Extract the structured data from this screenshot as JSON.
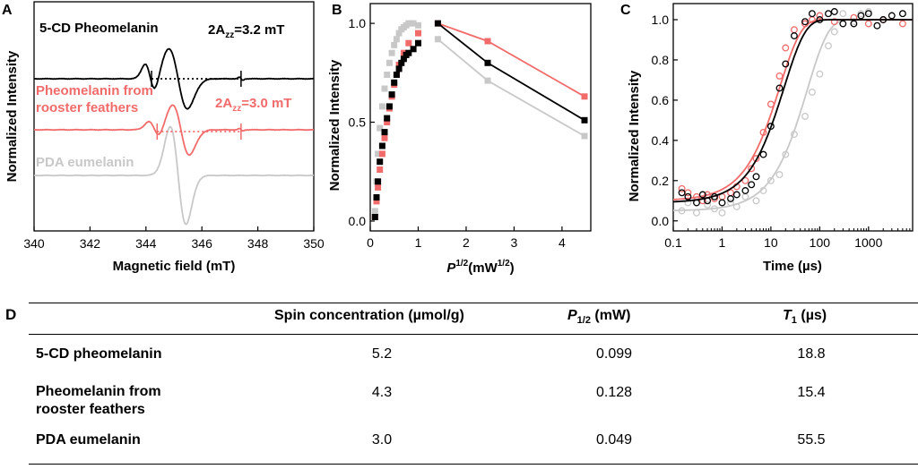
{
  "panel_letters": {
    "a": "A",
    "b": "B",
    "c": "C",
    "d": "D"
  },
  "chart_data": [
    {
      "panel": "A",
      "type": "line",
      "xlabel": "Magnetic field (mT)",
      "ylabel": "Normalized Intensity",
      "xlim": [
        340,
        350
      ],
      "xticks": [
        "340",
        "342",
        "344",
        "346",
        "348",
        "350"
      ],
      "series": [
        {
          "name": "5-CD Pheomelanin",
          "color": "#000000",
          "label_color": "#000000",
          "annotation": "2A",
          "annotation_sub": "zz",
          "annotation_rest": "=3.2 mT",
          "span_mT": [
            344.2,
            347.4
          ]
        },
        {
          "name": "Pheomelanin from rooster feathers",
          "label_line1": "Pheomelanin from",
          "label_line2": "rooster feathers",
          "color": "#f26b6b",
          "label_color": "#f26b6b",
          "annotation": "2A",
          "annotation_sub": "zz",
          "annotation_rest": "=3.0 mT",
          "span_mT": [
            344.4,
            347.4
          ]
        },
        {
          "name": "PDA eumelanin",
          "color": "#c8c8c8",
          "label_color": "#c8c8c8"
        }
      ]
    },
    {
      "panel": "B",
      "type": "scatter",
      "xlabel_main": "P",
      "xlabel_sup": "1/2",
      "xlabel_rest": "(mW",
      "xlabel_sup2": "1/2",
      "xlabel_end": ")",
      "ylabel": "Normalized Intensity",
      "xlim": [
        0,
        4.6
      ],
      "ylim": [
        -0.05,
        1.1
      ],
      "xticks": [
        "0",
        "1",
        "2",
        "3",
        "4"
      ],
      "yticks": [
        "0.0",
        "0.5",
        "1.0"
      ],
      "series": [
        {
          "name": "5-CD pheomelanin",
          "color": "#000000",
          "x": [
            0.1,
            0.13,
            0.16,
            0.2,
            0.25,
            0.3,
            0.35,
            0.4,
            0.45,
            0.5,
            0.55,
            0.6,
            0.65,
            0.7,
            0.75,
            0.8,
            0.9,
            1.0,
            1.41,
            2.45,
            4.47
          ],
          "y": [
            0.02,
            0.12,
            0.2,
            0.3,
            0.38,
            0.45,
            0.52,
            0.58,
            0.64,
            0.7,
            0.74,
            0.77,
            0.8,
            0.82,
            0.84,
            0.85,
            0.87,
            0.9,
            1.0,
            0.8,
            0.51
          ]
        },
        {
          "name": "Pheomelanin from rooster feathers",
          "color": "#f26b6b",
          "x": [
            0.1,
            0.13,
            0.16,
            0.2,
            0.25,
            0.3,
            0.35,
            0.4,
            0.45,
            0.5,
            0.55,
            0.6,
            0.7,
            0.8,
            1.0,
            1.41,
            2.45,
            4.47
          ],
          "y": [
            0.02,
            0.1,
            0.17,
            0.26,
            0.34,
            0.42,
            0.5,
            0.57,
            0.63,
            0.69,
            0.74,
            0.79,
            0.85,
            0.9,
            0.95,
            1.0,
            0.91,
            0.63
          ]
        },
        {
          "name": "PDA eumelanin",
          "color": "#c8c8c8",
          "x": [
            0.1,
            0.13,
            0.16,
            0.2,
            0.25,
            0.3,
            0.35,
            0.4,
            0.45,
            0.5,
            0.55,
            0.6,
            0.65,
            0.7,
            0.75,
            0.8,
            0.85,
            0.9,
            1.0,
            1.41,
            2.45,
            4.47
          ],
          "y": [
            0.05,
            0.2,
            0.34,
            0.47,
            0.58,
            0.67,
            0.74,
            0.8,
            0.85,
            0.89,
            0.92,
            0.95,
            0.97,
            0.98,
            0.99,
            1.0,
            1.0,
            1.0,
            0.99,
            0.92,
            0.71,
            0.43
          ]
        }
      ]
    },
    {
      "panel": "C",
      "type": "scatter",
      "xlabel": "Time (µs)",
      "ylabel": "Normalized Intensity",
      "xscale": "log",
      "xlim": [
        0.1,
        8000
      ],
      "ylim": [
        -0.05,
        1.08
      ],
      "xticks": [
        "0.1",
        "1",
        "10",
        "100",
        "1000"
      ],
      "yticks": [
        "0.0",
        "0.2",
        "0.4",
        "0.6",
        "0.8",
        "1.0"
      ],
      "series": [
        {
          "name": "5-CD pheomelanin",
          "color": "#000000",
          "T1": 18.8,
          "y0": 0.09,
          "x": [
            0.15,
            0.2,
            0.3,
            0.4,
            0.5,
            0.7,
            1,
            1.5,
            2,
            3,
            4,
            5,
            7,
            10,
            15,
            20,
            30,
            50,
            70,
            100,
            150,
            200,
            300,
            500,
            700,
            1000,
            1500,
            2000,
            3000,
            5000
          ],
          "y": [
            0.14,
            0.12,
            0.09,
            0.13,
            0.1,
            0.12,
            0.09,
            0.11,
            0.13,
            0.15,
            0.18,
            0.22,
            0.33,
            0.47,
            0.66,
            0.78,
            0.92,
            0.99,
            1.03,
            1.0,
            1.03,
            1.04,
            0.98,
            0.98,
            1.02,
            1.03,
            0.97,
            1.0,
            1.02,
            1.03
          ]
        },
        {
          "name": "Pheomelanin from rooster feathers",
          "color": "#f26b6b",
          "T1": 15.4,
          "y0": 0.1,
          "x": [
            0.15,
            0.2,
            0.3,
            0.4,
            0.5,
            0.7,
            1,
            1.5,
            2,
            3,
            4,
            5,
            7,
            10,
            15,
            20,
            30,
            50,
            70,
            100,
            200,
            500,
            1000,
            2000,
            5000
          ],
          "y": [
            0.16,
            0.14,
            0.12,
            0.1,
            0.13,
            0.11,
            0.12,
            0.14,
            0.17,
            0.2,
            0.26,
            0.31,
            0.44,
            0.58,
            0.72,
            0.86,
            0.95,
            0.98,
            1.0,
            1.02,
            0.99,
            1.01,
            0.98,
            1.0,
            0.98
          ]
        },
        {
          "name": "PDA eumelanin",
          "color": "#c8c8c8",
          "T1": 55.5,
          "y0": 0.05,
          "x": [
            0.15,
            0.2,
            0.3,
            0.5,
            0.7,
            1,
            1.5,
            2,
            3,
            5,
            7,
            10,
            15,
            20,
            30,
            50,
            70,
            100,
            150,
            200,
            300,
            500,
            700,
            1000,
            2000,
            5000
          ],
          "y": [
            0.05,
            0.09,
            0.04,
            0.08,
            0.06,
            0.04,
            0.09,
            0.07,
            0.12,
            0.1,
            0.15,
            0.2,
            0.23,
            0.33,
            0.43,
            0.52,
            0.64,
            0.73,
            0.87,
            0.94,
            1.03,
            0.99,
            1.03,
            1.04,
            1.0,
            1.03
          ]
        }
      ]
    },
    {
      "panel": "D",
      "type": "table",
      "columns": [
        "Spin concentration (µmol/g)",
        "P",
        "1/2",
        "(mW)",
        "T",
        "1",
        "(µs)"
      ],
      "rows": [
        {
          "label": "5-CD pheomelanin",
          "spin": "5.2",
          "p": "0.099",
          "t1": "18.8"
        },
        {
          "label": "Pheomelanin from rooster  feathers",
          "label_line1": "Pheomelanin from",
          "label_line2": "rooster  feathers",
          "spin": "4.3",
          "p": "0.128",
          "t1": "15.4"
        },
        {
          "label": "PDA eumelanin",
          "spin": "3.0",
          "p": "0.049",
          "t1": "55.5"
        }
      ]
    }
  ]
}
